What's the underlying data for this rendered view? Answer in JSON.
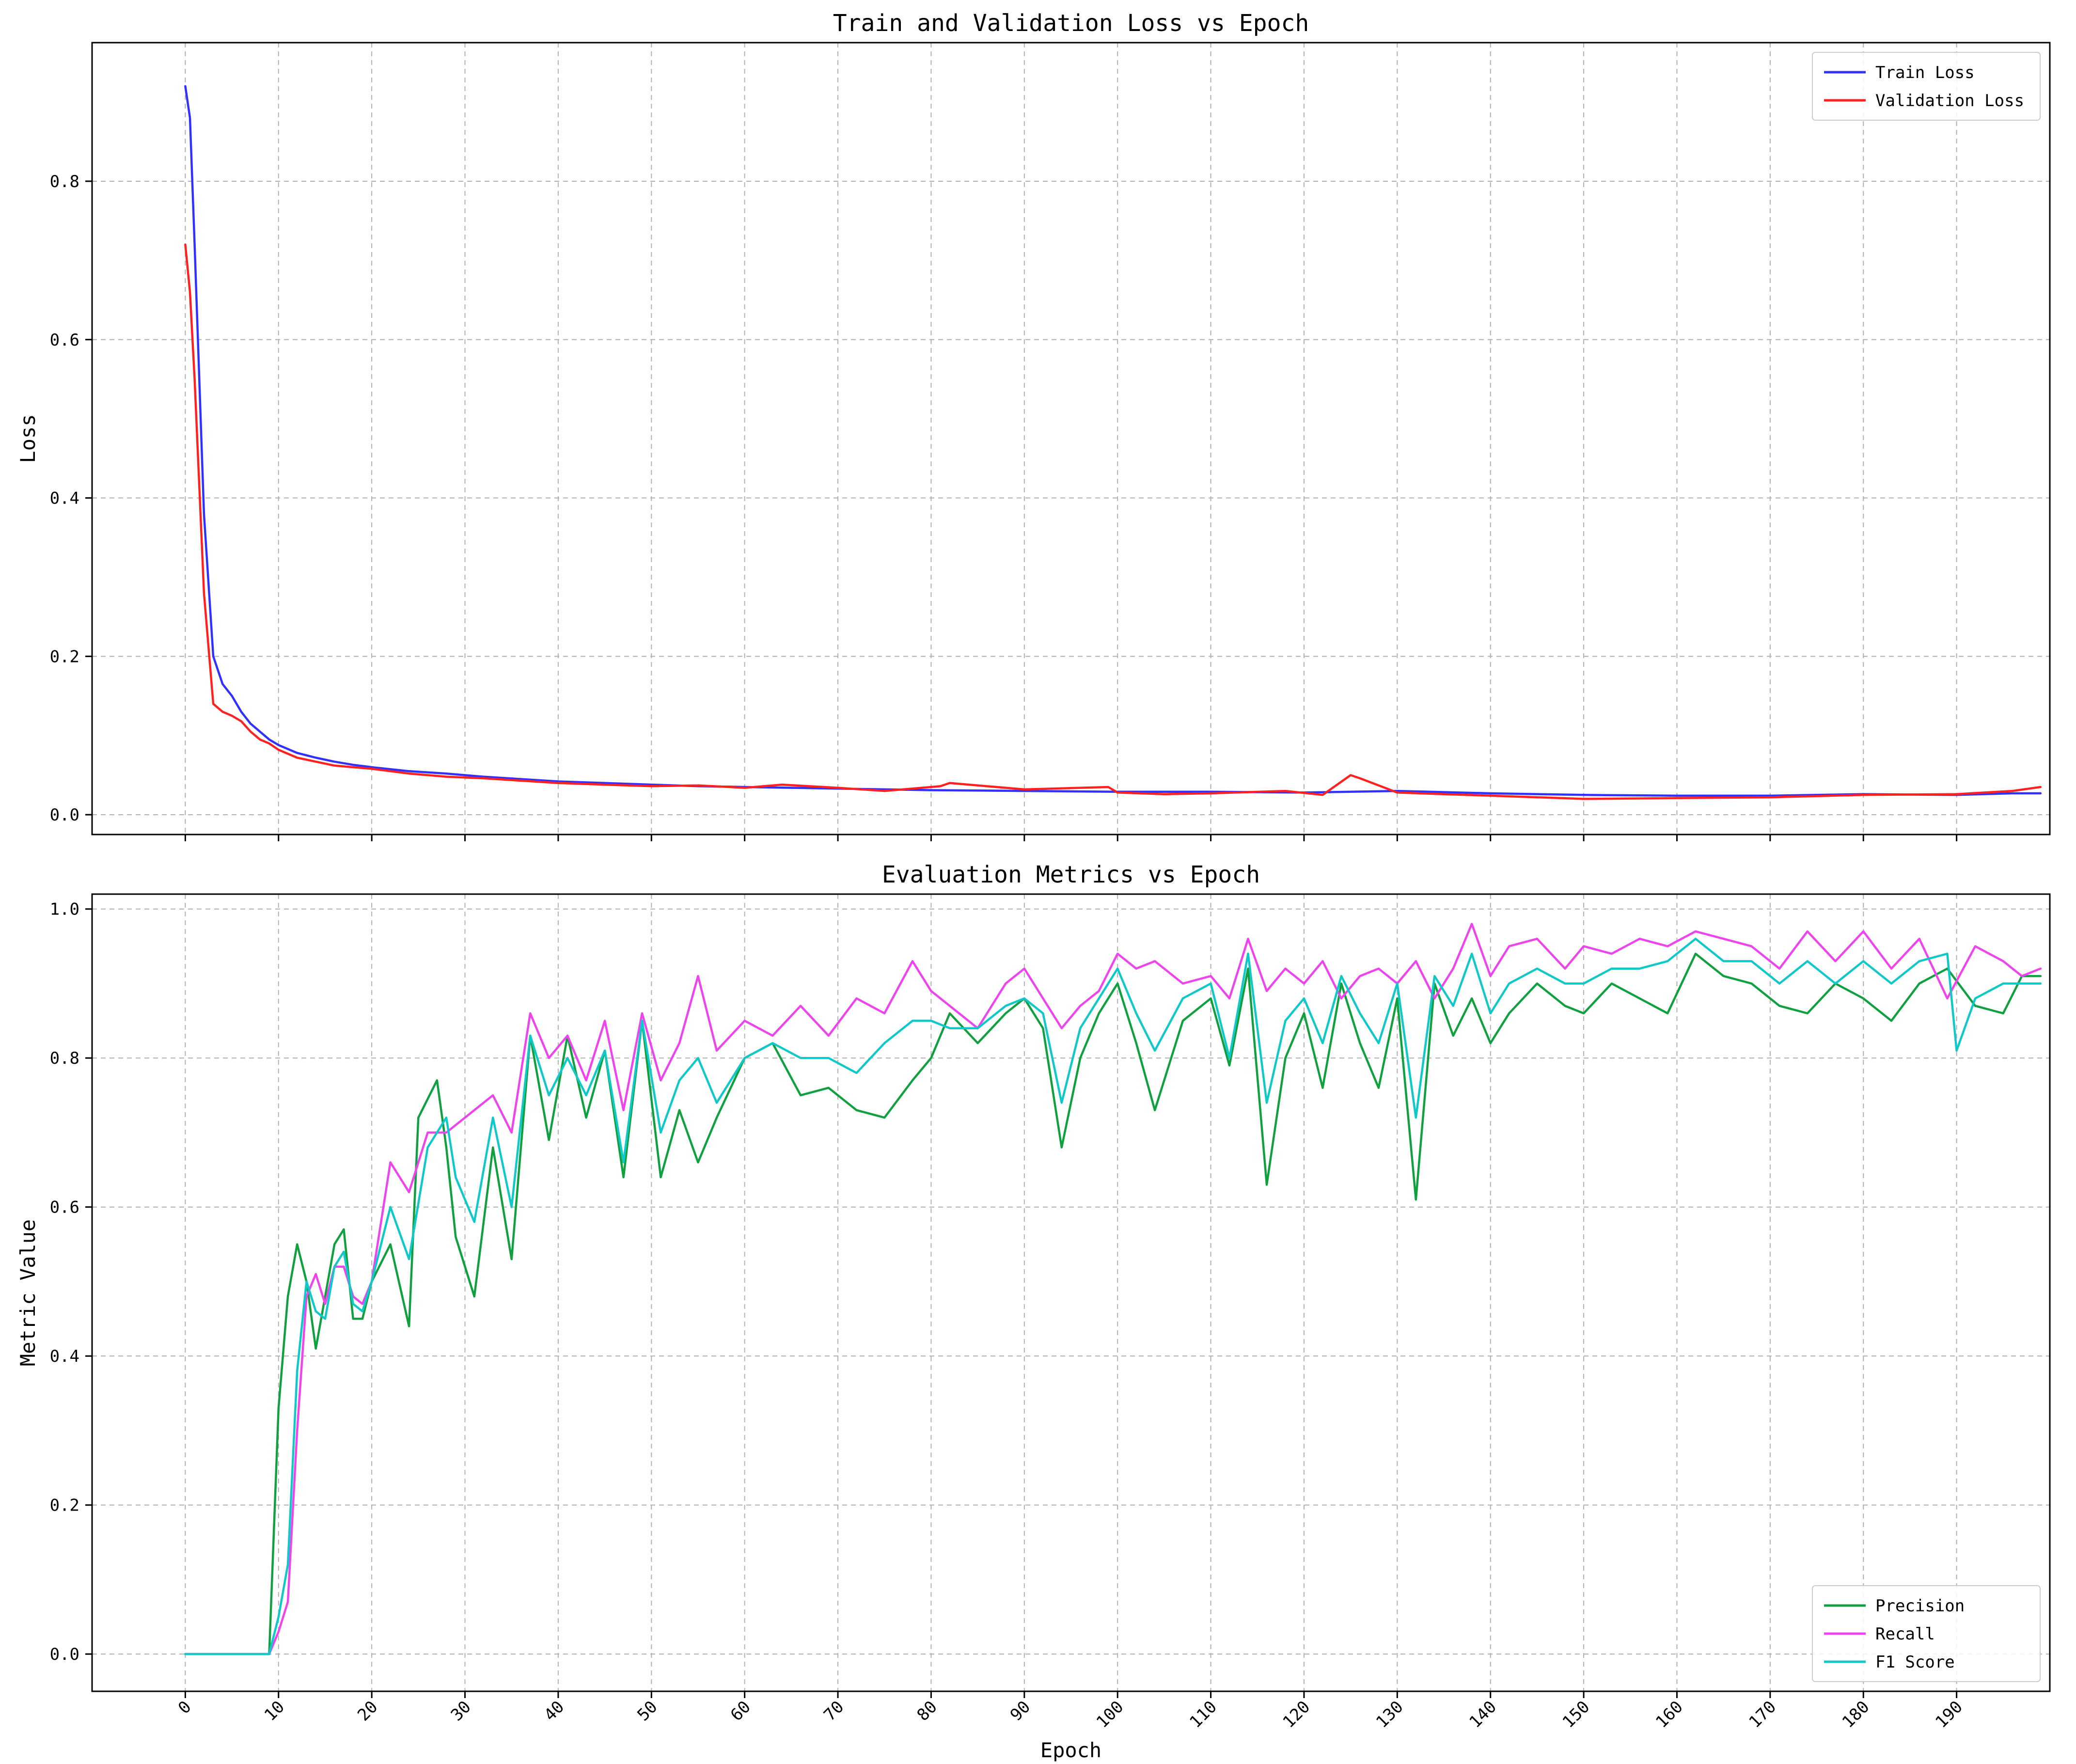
{
  "chart_data": [
    {
      "type": "line",
      "title": "Train and Validation Loss vs Epoch",
      "xlabel": "",
      "ylabel": "Loss",
      "xlim": [
        -10,
        200
      ],
      "ylim": [
        -0.025,
        0.975
      ],
      "xticks": [
        0,
        10,
        20,
        30,
        40,
        50,
        60,
        70,
        80,
        90,
        100,
        110,
        120,
        130,
        140,
        150,
        160,
        170,
        180,
        190
      ],
      "yticks": [
        0.0,
        0.2,
        0.4,
        0.6,
        0.8
      ],
      "grid": true,
      "legend": "top-right",
      "series": [
        {
          "name": "Train Loss",
          "color": "#3030ff",
          "x": [
            0,
            0.5,
            1,
            2,
            3,
            4,
            5,
            6,
            7,
            8,
            9,
            10,
            12,
            14,
            16,
            18,
            20,
            24,
            28,
            32,
            36,
            40,
            45,
            50,
            55,
            60,
            65,
            70,
            75,
            80,
            90,
            100,
            110,
            120,
            130,
            140,
            150,
            160,
            170,
            180,
            190,
            196,
            199
          ],
          "y": [
            0.92,
            0.88,
            0.72,
            0.38,
            0.2,
            0.165,
            0.15,
            0.13,
            0.115,
            0.105,
            0.095,
            0.088,
            0.078,
            0.072,
            0.067,
            0.063,
            0.06,
            0.055,
            0.052,
            0.048,
            0.045,
            0.042,
            0.04,
            0.038,
            0.036,
            0.035,
            0.034,
            0.033,
            0.032,
            0.031,
            0.03,
            0.029,
            0.029,
            0.028,
            0.03,
            0.027,
            0.025,
            0.024,
            0.024,
            0.026,
            0.025,
            0.027,
            0.027
          ]
        },
        {
          "name": "Validation Loss",
          "color": "#ff2020",
          "x": [
            0,
            0.5,
            1,
            2,
            3,
            4,
            5,
            6,
            7,
            8,
            9,
            10,
            12,
            14,
            16,
            18,
            20,
            24,
            28,
            32,
            36,
            40,
            45,
            50,
            55,
            60,
            64,
            70,
            75,
            81,
            82,
            90,
            99,
            100,
            105,
            110,
            118,
            122,
            125,
            126,
            130,
            135,
            140,
            150,
            160,
            170,
            180,
            190,
            196,
            199
          ],
          "y": [
            0.72,
            0.66,
            0.55,
            0.28,
            0.14,
            0.13,
            0.125,
            0.118,
            0.105,
            0.095,
            0.09,
            0.082,
            0.072,
            0.067,
            0.062,
            0.06,
            0.058,
            0.052,
            0.048,
            0.046,
            0.043,
            0.04,
            0.038,
            0.036,
            0.037,
            0.034,
            0.038,
            0.034,
            0.03,
            0.036,
            0.04,
            0.032,
            0.035,
            0.028,
            0.026,
            0.027,
            0.03,
            0.025,
            0.05,
            0.046,
            0.028,
            0.026,
            0.024,
            0.02,
            0.021,
            0.022,
            0.025,
            0.026,
            0.03,
            0.035
          ]
        }
      ]
    },
    {
      "type": "line",
      "title": "Evaluation Metrics vs Epoch",
      "xlabel": "Epoch",
      "ylabel": "Metric Value",
      "xlim": [
        -10,
        200
      ],
      "ylim": [
        -0.05,
        1.02
      ],
      "xticks": [
        0,
        10,
        20,
        30,
        40,
        50,
        60,
        70,
        80,
        90,
        100,
        110,
        120,
        130,
        140,
        150,
        160,
        170,
        180,
        190
      ],
      "yticks": [
        0.0,
        0.2,
        0.4,
        0.6,
        0.8,
        1.0
      ],
      "grid": true,
      "legend": "bottom-right",
      "series": [
        {
          "name": "Precision",
          "color": "#10a040",
          "x": [
            0,
            9,
            10,
            11,
            12,
            13,
            14,
            15,
            16,
            17,
            18,
            19,
            20,
            22,
            24,
            25,
            27,
            28,
            29,
            31,
            33,
            35,
            37,
            39,
            41,
            43,
            45,
            47,
            49,
            51,
            53,
            55,
            57,
            60,
            63,
            66,
            69,
            72,
            75,
            78,
            80,
            82,
            85,
            88,
            90,
            92,
            94,
            96,
            98,
            100,
            102,
            104,
            107,
            110,
            112,
            114,
            116,
            118,
            120,
            122,
            124,
            126,
            128,
            130,
            132,
            134,
            136,
            138,
            140,
            142,
            145,
            148,
            150,
            153,
            156,
            159,
            162,
            165,
            168,
            171,
            174,
            177,
            180,
            183,
            186,
            189,
            192,
            195,
            197,
            199
          ],
          "y": [
            0.0,
            0.0,
            0.33,
            0.48,
            0.55,
            0.5,
            0.41,
            0.48,
            0.55,
            0.57,
            0.45,
            0.45,
            0.5,
            0.55,
            0.44,
            0.72,
            0.77,
            0.68,
            0.56,
            0.48,
            0.68,
            0.53,
            0.83,
            0.69,
            0.83,
            0.72,
            0.81,
            0.64,
            0.85,
            0.64,
            0.73,
            0.66,
            0.72,
            0.8,
            0.82,
            0.75,
            0.76,
            0.73,
            0.72,
            0.77,
            0.8,
            0.86,
            0.82,
            0.86,
            0.88,
            0.84,
            0.68,
            0.8,
            0.86,
            0.9,
            0.82,
            0.73,
            0.85,
            0.88,
            0.79,
            0.92,
            0.63,
            0.8,
            0.86,
            0.76,
            0.9,
            0.82,
            0.76,
            0.88,
            0.61,
            0.9,
            0.83,
            0.88,
            0.82,
            0.86,
            0.9,
            0.87,
            0.86,
            0.9,
            0.88,
            0.86,
            0.94,
            0.91,
            0.9,
            0.87,
            0.86,
            0.9,
            0.88,
            0.85,
            0.9,
            0.92,
            0.87,
            0.86,
            0.91,
            0.91
          ]
        },
        {
          "name": "Recall",
          "color": "#ee44ee",
          "x": [
            0,
            9,
            10,
            11,
            12,
            13,
            14,
            15,
            16,
            17,
            18,
            19,
            20,
            22,
            24,
            26,
            28,
            30,
            33,
            35,
            37,
            39,
            41,
            43,
            45,
            47,
            49,
            51,
            53,
            55,
            57,
            60,
            63,
            66,
            69,
            72,
            75,
            78,
            80,
            82,
            85,
            88,
            90,
            92,
            94,
            96,
            98,
            100,
            102,
            104,
            107,
            110,
            112,
            114,
            116,
            118,
            120,
            122,
            124,
            126,
            128,
            130,
            132,
            134,
            136,
            138,
            140,
            142,
            145,
            148,
            150,
            153,
            156,
            159,
            162,
            165,
            168,
            171,
            174,
            177,
            180,
            183,
            186,
            189,
            192,
            195,
            197,
            199
          ],
          "y": [
            0.0,
            0.0,
            0.03,
            0.07,
            0.3,
            0.48,
            0.51,
            0.47,
            0.52,
            0.52,
            0.48,
            0.47,
            0.5,
            0.66,
            0.62,
            0.7,
            0.7,
            0.72,
            0.75,
            0.7,
            0.86,
            0.8,
            0.83,
            0.77,
            0.85,
            0.73,
            0.86,
            0.77,
            0.82,
            0.91,
            0.81,
            0.85,
            0.83,
            0.87,
            0.83,
            0.88,
            0.86,
            0.93,
            0.89,
            0.87,
            0.84,
            0.9,
            0.92,
            0.88,
            0.84,
            0.87,
            0.89,
            0.94,
            0.92,
            0.93,
            0.9,
            0.91,
            0.88,
            0.96,
            0.89,
            0.92,
            0.9,
            0.93,
            0.88,
            0.91,
            0.92,
            0.9,
            0.93,
            0.88,
            0.92,
            0.98,
            0.91,
            0.95,
            0.96,
            0.92,
            0.95,
            0.94,
            0.96,
            0.95,
            0.97,
            0.96,
            0.95,
            0.92,
            0.97,
            0.93,
            0.97,
            0.92,
            0.96,
            0.88,
            0.95,
            0.93,
            0.91,
            0.92
          ]
        },
        {
          "name": "F1 Score",
          "color": "#10c8c8",
          "x": [
            0,
            9,
            10,
            11,
            12,
            13,
            14,
            15,
            16,
            17,
            18,
            19,
            20,
            22,
            24,
            26,
            28,
            29,
            31,
            33,
            35,
            37,
            39,
            41,
            43,
            45,
            47,
            49,
            51,
            53,
            55,
            57,
            60,
            63,
            66,
            69,
            72,
            75,
            78,
            80,
            82,
            85,
            88,
            90,
            92,
            94,
            96,
            98,
            100,
            102,
            104,
            107,
            110,
            112,
            114,
            116,
            118,
            120,
            122,
            124,
            126,
            128,
            130,
            132,
            134,
            136,
            138,
            140,
            142,
            145,
            148,
            150,
            153,
            156,
            159,
            162,
            165,
            168,
            171,
            174,
            177,
            180,
            183,
            186,
            189,
            190,
            192,
            195,
            197,
            199
          ],
          "y": [
            0.0,
            0.0,
            0.05,
            0.12,
            0.38,
            0.5,
            0.46,
            0.45,
            0.52,
            0.54,
            0.47,
            0.46,
            0.5,
            0.6,
            0.53,
            0.68,
            0.72,
            0.64,
            0.58,
            0.72,
            0.6,
            0.83,
            0.75,
            0.8,
            0.75,
            0.81,
            0.66,
            0.85,
            0.7,
            0.77,
            0.8,
            0.74,
            0.8,
            0.82,
            0.8,
            0.8,
            0.78,
            0.82,
            0.85,
            0.85,
            0.84,
            0.84,
            0.87,
            0.88,
            0.86,
            0.74,
            0.84,
            0.88,
            0.92,
            0.86,
            0.81,
            0.88,
            0.9,
            0.8,
            0.94,
            0.74,
            0.85,
            0.88,
            0.82,
            0.91,
            0.86,
            0.82,
            0.9,
            0.72,
            0.91,
            0.87,
            0.94,
            0.86,
            0.9,
            0.92,
            0.9,
            0.9,
            0.92,
            0.92,
            0.93,
            0.96,
            0.93,
            0.93,
            0.9,
            0.93,
            0.9,
            0.93,
            0.9,
            0.93,
            0.94,
            0.81,
            0.88,
            0.9,
            0.9,
            0.9
          ]
        }
      ]
    }
  ]
}
